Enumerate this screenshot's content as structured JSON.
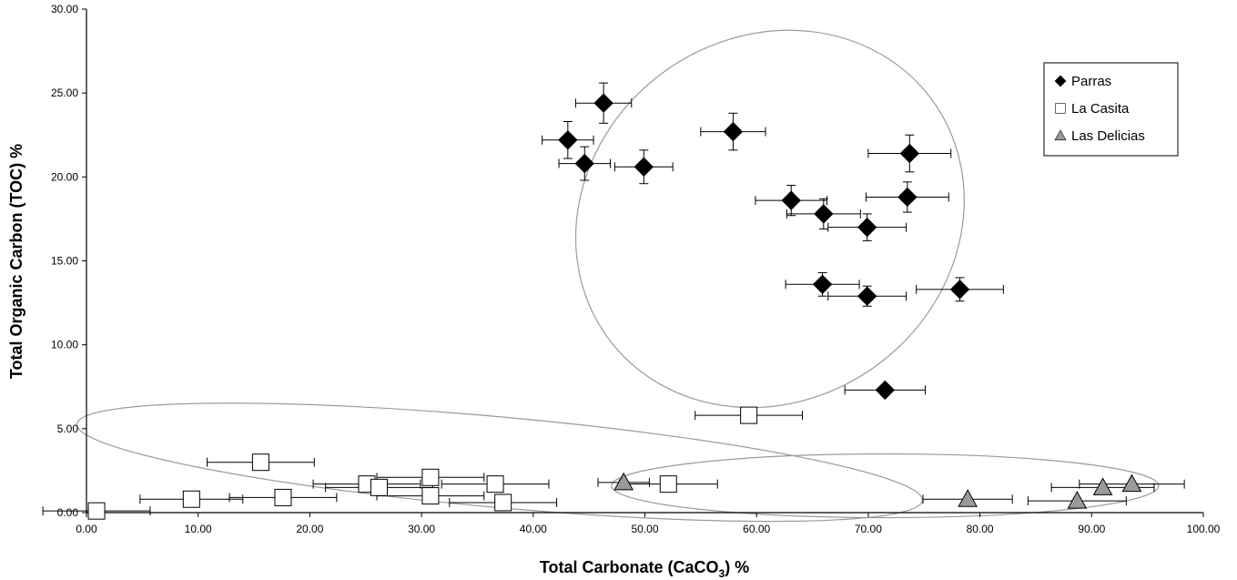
{
  "chart_data": {
    "type": "scatter",
    "xlabel": "Total Carbonate (CaCO",
    "xlabel_sub": "3",
    "xlabel_tail": ") %",
    "ylabel": "Total Organic Carbon (TOC) %",
    "xlim": [
      0,
      100
    ],
    "ylim": [
      0,
      30
    ],
    "x_ticks": [
      "0.00",
      "10.00",
      "20.00",
      "30.00",
      "40.00",
      "50.00",
      "60.00",
      "70.00",
      "80.00",
      "90.00",
      "100.00"
    ],
    "y_ticks": [
      "0.00",
      "5.00",
      "10.00",
      "15.00",
      "20.00",
      "25.00",
      "30.00"
    ],
    "grid": false,
    "legend_position": "top-right",
    "series": [
      {
        "name": "Parras",
        "marker": "diamond",
        "color": "#000000",
        "points": [
          {
            "x": 46.3,
            "y": 24.4,
            "xerr": 2.5,
            "yerr": 1.2
          },
          {
            "x": 43.1,
            "y": 22.2,
            "xerr": 2.3,
            "yerr": 1.1
          },
          {
            "x": 44.6,
            "y": 20.8,
            "xerr": 2.3,
            "yerr": 1.0
          },
          {
            "x": 49.9,
            "y": 20.6,
            "xerr": 2.6,
            "yerr": 1.0
          },
          {
            "x": 57.9,
            "y": 22.7,
            "xerr": 2.9,
            "yerr": 1.1
          },
          {
            "x": 73.7,
            "y": 21.4,
            "xerr": 3.7,
            "yerr": 1.1
          },
          {
            "x": 63.1,
            "y": 18.6,
            "xerr": 3.2,
            "yerr": 0.9
          },
          {
            "x": 66.0,
            "y": 17.8,
            "xerr": 3.3,
            "yerr": 0.9
          },
          {
            "x": 73.5,
            "y": 18.8,
            "xerr": 3.7,
            "yerr": 0.9
          },
          {
            "x": 69.9,
            "y": 17.0,
            "xerr": 3.5,
            "yerr": 0.8
          },
          {
            "x": 65.9,
            "y": 13.6,
            "xerr": 3.3,
            "yerr": 0.7
          },
          {
            "x": 69.9,
            "y": 12.9,
            "xerr": 3.5,
            "yerr": 0.6
          },
          {
            "x": 78.2,
            "y": 13.3,
            "xerr": 3.9,
            "yerr": 0.7
          },
          {
            "x": 71.5,
            "y": 7.3,
            "xerr": 3.6,
            "yerr": 0
          }
        ]
      },
      {
        "name": "La Casita",
        "marker": "square",
        "color": "#ffffff",
        "points": [
          {
            "x": 59.3,
            "y": 5.8,
            "xerr": 4.8,
            "yerr": 0
          },
          {
            "x": 15.6,
            "y": 3.0,
            "xerr": 4.8,
            "yerr": 0
          },
          {
            "x": 25.1,
            "y": 1.7,
            "xerr": 4.8,
            "yerr": 0
          },
          {
            "x": 26.2,
            "y": 1.5,
            "xerr": 4.8,
            "yerr": 0
          },
          {
            "x": 30.8,
            "y": 2.1,
            "xerr": 4.8,
            "yerr": 0
          },
          {
            "x": 30.8,
            "y": 1.0,
            "xerr": 4.8,
            "yerr": 0
          },
          {
            "x": 36.6,
            "y": 1.7,
            "xerr": 4.8,
            "yerr": 0
          },
          {
            "x": 37.3,
            "y": 0.6,
            "xerr": 4.8,
            "yerr": 0
          },
          {
            "x": 52.1,
            "y": 1.7,
            "xerr": 4.4,
            "yerr": 0
          },
          {
            "x": 17.6,
            "y": 0.9,
            "xerr": 4.8,
            "yerr": 0
          },
          {
            "x": 9.4,
            "y": 0.8,
            "xerr": 4.6,
            "yerr": 0
          },
          {
            "x": 0.9,
            "y": 0.1,
            "xerr": 4.8,
            "yerr": 0
          }
        ]
      },
      {
        "name": "Las Delicias",
        "marker": "triangle",
        "color": "#9a9a9a",
        "points": [
          {
            "x": 48.1,
            "y": 1.8,
            "xerr": 2.3,
            "yerr": 0
          },
          {
            "x": 78.9,
            "y": 0.8,
            "xerr": 4.0,
            "yerr": 0
          },
          {
            "x": 88.7,
            "y": 0.7,
            "xerr": 4.4,
            "yerr": 0
          },
          {
            "x": 91.0,
            "y": 1.5,
            "xerr": 4.6,
            "yerr": 0
          },
          {
            "x": 93.6,
            "y": 1.7,
            "xerr": 4.7,
            "yerr": 0
          }
        ]
      }
    ],
    "ellipses": [
      {
        "cx": 61.2,
        "cy": 17.5,
        "rx": 18.0,
        "ry": 10.8,
        "angle": 0.64
      },
      {
        "cx": 37.0,
        "cy": 3.0,
        "rx": 38.0,
        "ry": 2.7,
        "angle": -0.09
      },
      {
        "cx": 71.5,
        "cy": 1.6,
        "rx": 24.5,
        "ry": 1.9,
        "angle": 0.0
      }
    ]
  }
}
